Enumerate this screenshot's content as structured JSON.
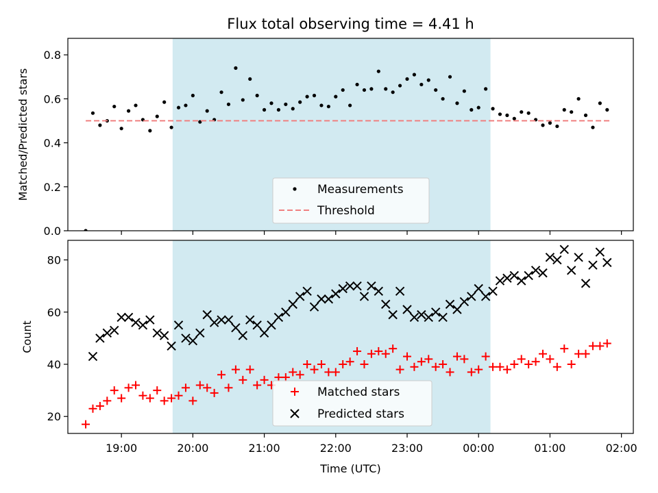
{
  "chart_data": [
    {
      "type": "scatter",
      "title": "Flux total observing time = 4.41 h",
      "xlabel": "",
      "ylabel": "Matched/Predicted stars",
      "xlim": [
        "18:15",
        "02:10"
      ],
      "ylim": [
        0,
        0.875
      ],
      "yticks": [
        0.0,
        0.2,
        0.4,
        0.6,
        0.8
      ],
      "ytick_labels": [
        "0.0",
        "0.2",
        "0.4",
        "0.6",
        "0.8"
      ],
      "shaded_region": {
        "x_start": "19:43",
        "x_end": "00:10",
        "color": "#add8e6"
      },
      "legend": {
        "placement": "lower center",
        "entries": [
          "Measurements",
          "Threshold"
        ]
      },
      "series": [
        {
          "name": "Measurements",
          "marker": "point",
          "color": "#000000",
          "x": [
            "18:30",
            "18:36",
            "18:42",
            "18:48",
            "18:54",
            "19:00",
            "19:06",
            "19:12",
            "19:18",
            "19:24",
            "19:30",
            "19:36",
            "19:42",
            "19:48",
            "19:54",
            "20:00",
            "20:06",
            "20:12",
            "20:18",
            "20:24",
            "20:30",
            "20:36",
            "20:42",
            "20:48",
            "20:54",
            "21:00",
            "21:06",
            "21:12",
            "21:18",
            "21:24",
            "21:30",
            "21:36",
            "21:42",
            "21:48",
            "21:54",
            "22:00",
            "22:06",
            "22:12",
            "22:18",
            "22:24",
            "22:30",
            "22:36",
            "22:42",
            "22:48",
            "22:54",
            "23:00",
            "23:06",
            "23:12",
            "23:18",
            "23:24",
            "23:30",
            "23:36",
            "23:42",
            "23:48",
            "23:54",
            "00:00",
            "00:06",
            "00:12",
            "00:18",
            "00:24",
            "00:30",
            "00:36",
            "00:42",
            "00:48",
            "00:54",
            "01:00",
            "01:06",
            "01:12",
            "01:18",
            "01:24",
            "01:30",
            "01:36",
            "01:42",
            "01:48"
          ],
          "y": [
            0.0,
            0.535,
            0.48,
            0.5,
            0.565,
            0.465,
            0.545,
            0.57,
            0.505,
            0.455,
            0.52,
            0.585,
            0.47,
            0.56,
            0.57,
            0.615,
            0.495,
            0.545,
            0.505,
            0.63,
            0.575,
            0.74,
            0.595,
            0.69,
            0.615,
            0.55,
            0.58,
            0.55,
            0.575,
            0.555,
            0.585,
            0.61,
            0.615,
            0.57,
            0.565,
            0.61,
            0.64,
            0.57,
            0.665,
            0.64,
            0.645,
            0.725,
            0.645,
            0.63,
            0.66,
            0.69,
            0.71,
            0.665,
            0.685,
            0.64,
            0.6,
            0.7,
            0.58,
            0.635,
            0.55,
            0.56,
            0.645,
            0.555,
            0.53,
            0.525,
            0.51,
            0.54,
            0.535,
            0.505,
            0.48,
            0.49,
            0.475,
            0.55,
            0.54,
            0.6,
            0.525,
            0.47,
            0.58,
            0.55
          ]
        },
        {
          "name": "Threshold",
          "style": "dashed",
          "color": "#f08080",
          "x": [
            "18:30",
            "01:50"
          ],
          "y": [
            0.5,
            0.5
          ]
        }
      ]
    },
    {
      "type": "scatter",
      "title": "",
      "xlabel": "Time (UTC)",
      "ylabel": "Count",
      "xlim": [
        "18:15",
        "02:10"
      ],
      "ylim": [
        13.5,
        87.5
      ],
      "yticks": [
        20,
        40,
        60,
        80
      ],
      "ytick_labels": [
        "20",
        "40",
        "60",
        "80"
      ],
      "xticks": [
        "19:00",
        "20:00",
        "21:00",
        "22:00",
        "23:00",
        "00:00",
        "01:00",
        "02:00"
      ],
      "shaded_region": {
        "x_start": "19:43",
        "x_end": "00:10",
        "color": "#add8e6"
      },
      "legend": {
        "placement": "lower center",
        "entries": [
          "Matched stars",
          "Predicted stars"
        ]
      },
      "series": [
        {
          "name": "Matched stars",
          "marker": "plus",
          "color": "#ff0000",
          "x": [
            "18:30",
            "18:36",
            "18:42",
            "18:48",
            "18:54",
            "19:00",
            "19:06",
            "19:12",
            "19:18",
            "19:24",
            "19:30",
            "19:36",
            "19:42",
            "19:48",
            "19:54",
            "20:00",
            "20:06",
            "20:12",
            "20:18",
            "20:24",
            "20:30",
            "20:36",
            "20:42",
            "20:48",
            "20:54",
            "21:00",
            "21:06",
            "21:12",
            "21:18",
            "21:24",
            "21:30",
            "21:36",
            "21:42",
            "21:48",
            "21:54",
            "22:00",
            "22:06",
            "22:12",
            "22:18",
            "22:24",
            "22:30",
            "22:36",
            "22:42",
            "22:48",
            "22:54",
            "23:00",
            "23:06",
            "23:12",
            "23:18",
            "23:24",
            "23:30",
            "23:36",
            "23:42",
            "23:48",
            "23:54",
            "00:00",
            "00:06",
            "00:12",
            "00:18",
            "00:24",
            "00:30",
            "00:36",
            "00:42",
            "00:48",
            "00:54",
            "01:00",
            "01:06",
            "01:12",
            "01:18",
            "01:24",
            "01:30",
            "01:36",
            "01:42",
            "01:48"
          ],
          "y": [
            17,
            23,
            24,
            26,
            30,
            27,
            31,
            32,
            28,
            27,
            30,
            26,
            27,
            28,
            31,
            26,
            32,
            31,
            29,
            36,
            31,
            38,
            34,
            38,
            32,
            34,
            32,
            35,
            35,
            37,
            36,
            40,
            38,
            40,
            37,
            37,
            40,
            41,
            45,
            40,
            44,
            45,
            44,
            46,
            38,
            43,
            39,
            41,
            42,
            39,
            40,
            37,
            43,
            42,
            37,
            38,
            43,
            39,
            39,
            38,
            40,
            42,
            40,
            41,
            44,
            42,
            39,
            46,
            40,
            44,
            44,
            47,
            47,
            48
          ]
        },
        {
          "name": "Predicted stars",
          "marker": "x",
          "color": "#000000",
          "x": [
            "18:36",
            "18:42",
            "18:48",
            "18:54",
            "19:00",
            "19:06",
            "19:12",
            "19:18",
            "19:24",
            "19:30",
            "19:36",
            "19:42",
            "19:48",
            "19:54",
            "20:00",
            "20:06",
            "20:12",
            "20:18",
            "20:24",
            "20:30",
            "20:36",
            "20:42",
            "20:48",
            "20:54",
            "21:00",
            "21:06",
            "21:12",
            "21:18",
            "21:24",
            "21:30",
            "21:36",
            "21:42",
            "21:48",
            "21:54",
            "22:00",
            "22:06",
            "22:12",
            "22:18",
            "22:24",
            "22:30",
            "22:36",
            "22:42",
            "22:48",
            "22:54",
            "23:00",
            "23:06",
            "23:12",
            "23:18",
            "23:24",
            "23:30",
            "23:36",
            "23:42",
            "23:48",
            "23:54",
            "00:00",
            "00:06",
            "00:12",
            "00:18",
            "00:24",
            "00:30",
            "00:36",
            "00:42",
            "00:48",
            "00:54",
            "01:00",
            "01:06",
            "01:12",
            "01:18",
            "01:24",
            "01:30",
            "01:36",
            "01:42",
            "01:48"
          ],
          "y": [
            43,
            50,
            52,
            53,
            58,
            58,
            56,
            55,
            57,
            52,
            51,
            47,
            55,
            50,
            49,
            52,
            59,
            56,
            57,
            57,
            54,
            51,
            57,
            55,
            52,
            55,
            58,
            60,
            63,
            66,
            68,
            62,
            65,
            65,
            67,
            69,
            70,
            70,
            66,
            70,
            68,
            63,
            59,
            68,
            61,
            58,
            59,
            58,
            60,
            58,
            63,
            61,
            64,
            66,
            69,
            66,
            68,
            72,
            73,
            74,
            72,
            74,
            76,
            75,
            81,
            80,
            84,
            76,
            81,
            71,
            78,
            83,
            79
          ]
        }
      ]
    }
  ]
}
